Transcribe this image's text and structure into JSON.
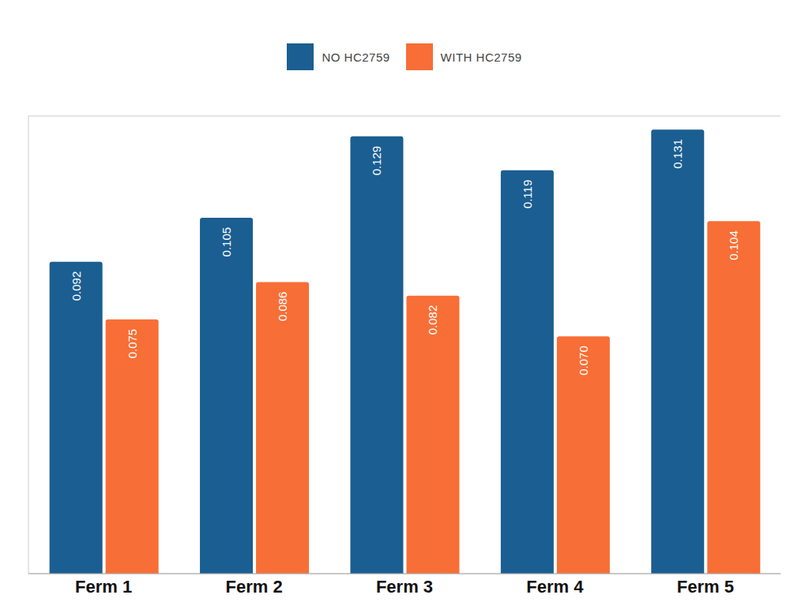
{
  "chart_data": {
    "type": "bar",
    "categories": [
      "Ferm 1",
      "Ferm 2",
      "Ferm 3",
      "Ferm 4",
      "Ferm 5"
    ],
    "series": [
      {
        "name": "NO HC2759",
        "color": "#1b5e91",
        "values": [
          0.092,
          0.105,
          0.129,
          0.119,
          0.131
        ],
        "value_labels": [
          "0.092",
          "0.105",
          "0.129",
          "0.119",
          "0.131"
        ]
      },
      {
        "name": "WITH HC2759",
        "color": "#f76e36",
        "values": [
          0.075,
          0.086,
          0.082,
          0.07,
          0.104
        ],
        "value_labels": [
          "0.075",
          "0.086",
          "0.082",
          "0.070",
          "0.104"
        ]
      }
    ],
    "ylim": [
      0,
      0.135
    ],
    "yticks": [
      0,
      0.045,
      0.09,
      0.135
    ],
    "grid": true,
    "legend": "top",
    "data_labels": true,
    "tick_labels": "x"
  }
}
